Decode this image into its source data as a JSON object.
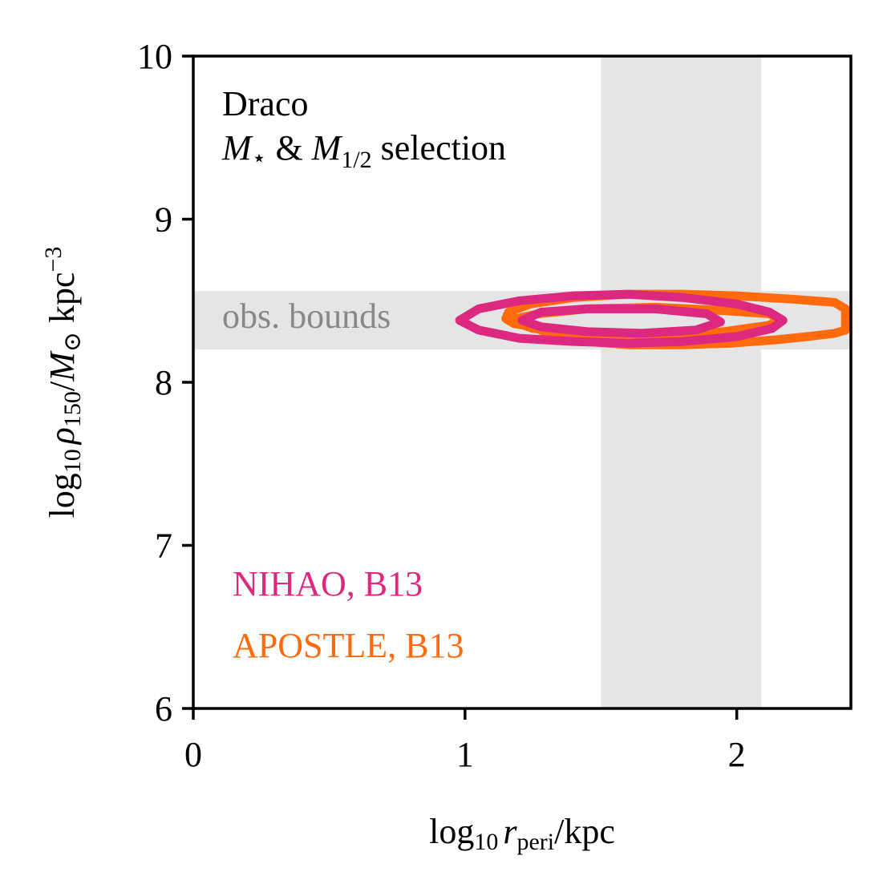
{
  "chart_data": {
    "type": "contour",
    "xlim": [
      0,
      2.42
    ],
    "ylim": [
      6,
      10
    ],
    "x_ticks": [
      0,
      1,
      2
    ],
    "y_ticks": [
      6,
      7,
      8,
      9,
      10
    ],
    "xlabel": {
      "base": "log",
      "sub1": "10",
      "var": "r",
      "sub2": "peri",
      "tail": "/kpc"
    },
    "ylabel": {
      "base": "log",
      "sub1": "10",
      "var": "ρ",
      "sub2": "150",
      "mid": "/",
      "var2": "M",
      "sun": "⊙",
      "unit": " kpc",
      "sup": "−3"
    },
    "annotation": {
      "line1": "Draco",
      "line2_var1": "M",
      "line2_star": "⋆",
      "line2_amp": " & ",
      "line2_var2": "M",
      "line2_sub": "1/2",
      "line2_tail": " selection"
    },
    "shaded_regions": [
      {
        "axis": "x",
        "from": 1.5,
        "to": 2.09,
        "label": "",
        "color": "#e5e5e5"
      },
      {
        "axis": "y",
        "from": 8.2,
        "to": 8.56,
        "label": "obs. bounds",
        "color": "#e5e5e5"
      }
    ],
    "series": [
      {
        "name": "APOSTLE, B13",
        "color": "#ff6a0d",
        "contours": [
          [
            [
              1.25,
              8.34
            ],
            [
              1.32,
              8.29
            ],
            [
              1.45,
              8.25
            ],
            [
              1.6,
              8.23
            ],
            [
              1.8,
              8.23
            ],
            [
              1.98,
              8.24
            ],
            [
              2.14,
              8.26
            ],
            [
              2.26,
              8.28
            ],
            [
              2.36,
              8.3
            ],
            [
              2.4,
              8.32
            ],
            [
              2.4,
              8.45
            ],
            [
              2.36,
              8.49
            ],
            [
              2.2,
              8.51
            ],
            [
              2.0,
              8.53
            ],
            [
              1.8,
              8.54
            ],
            [
              1.6,
              8.54
            ],
            [
              1.4,
              8.52
            ],
            [
              1.24,
              8.48
            ],
            [
              1.16,
              8.43
            ],
            [
              1.15,
              8.39
            ],
            [
              1.18,
              8.36
            ]
          ],
          [
            [
              1.16,
              8.38
            ],
            [
              1.25,
              8.33
            ],
            [
              1.45,
              8.3
            ],
            [
              1.7,
              8.29
            ],
            [
              1.95,
              8.31
            ],
            [
              2.12,
              8.35
            ],
            [
              2.16,
              8.39
            ],
            [
              2.12,
              8.42
            ],
            [
              1.95,
              8.44
            ],
            [
              1.7,
              8.46
            ],
            [
              1.45,
              8.45
            ],
            [
              1.27,
              8.42
            ]
          ]
        ]
      },
      {
        "name": "NIHAO, B13",
        "color": "#dd2880",
        "contours": [
          [
            [
              0.98,
              8.38
            ],
            [
              1.05,
              8.32
            ],
            [
              1.2,
              8.27
            ],
            [
              1.4,
              8.25
            ],
            [
              1.6,
              8.24
            ],
            [
              1.8,
              8.25
            ],
            [
              2.0,
              8.28
            ],
            [
              2.13,
              8.33
            ],
            [
              2.17,
              8.38
            ],
            [
              2.12,
              8.43
            ],
            [
              2.0,
              8.48
            ],
            [
              1.8,
              8.52
            ],
            [
              1.6,
              8.54
            ],
            [
              1.4,
              8.53
            ],
            [
              1.2,
              8.5
            ],
            [
              1.05,
              8.45
            ]
          ],
          [
            [
              1.21,
              8.38
            ],
            [
              1.28,
              8.34
            ],
            [
              1.45,
              8.31
            ],
            [
              1.65,
              8.3
            ],
            [
              1.85,
              8.32
            ],
            [
              1.94,
              8.37
            ],
            [
              1.89,
              8.42
            ],
            [
              1.7,
              8.45
            ],
            [
              1.45,
              8.45
            ],
            [
              1.28,
              8.43
            ]
          ]
        ]
      }
    ],
    "legend": [
      {
        "label": "NIHAO, B13",
        "color": "#dd2880"
      },
      {
        "label": "APOSTLE, B13",
        "color": "#ff6a0d"
      }
    ]
  }
}
